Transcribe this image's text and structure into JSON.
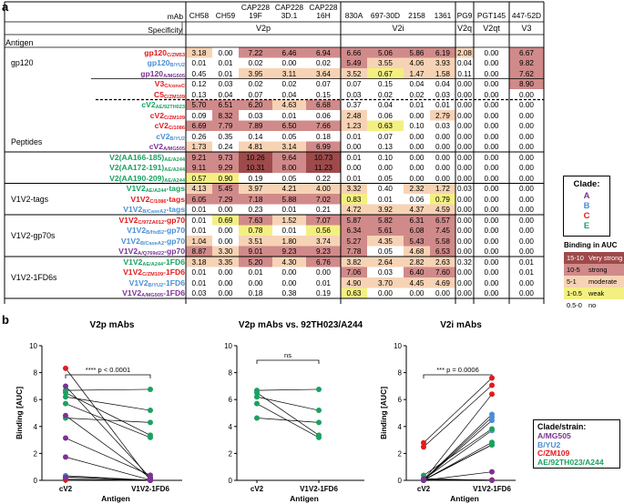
{
  "panel_a_letter": "a",
  "panel_b_letter": "b",
  "table": {
    "mab_header": "mAb",
    "specificity_header": "Specificity",
    "antigen_header": "Antigen",
    "mab_names": [
      [
        "CH58"
      ],
      [
        "CH59"
      ],
      [
        "CAP228",
        "19F"
      ],
      [
        "CAP228",
        "3D.1"
      ],
      [
        "CAP228",
        "16H"
      ],
      [
        "830A"
      ],
      [
        "697-30D"
      ],
      [
        "2158"
      ],
      [
        "1361"
      ],
      [
        "PG9"
      ],
      [
        "PGT145"
      ],
      [
        "447-52D"
      ]
    ],
    "specificities": [
      "V2p",
      "V2i",
      "V2q",
      "V2qt",
      "V3"
    ],
    "groups": [
      "gp120",
      "Peptides",
      "V1V2-tags",
      "V1V2-gp70s",
      "V1V2-1FD6s"
    ],
    "rows": [
      {
        "main": "gp120",
        "sub": "C/ZM53",
        "clade": "C",
        "vals": [
          "3.18",
          "0.00",
          "7.22",
          "6.46",
          "6.94",
          "6.66",
          "5.06",
          "5.86",
          "6.19",
          "2.08",
          "0.00",
          "6.67"
        ]
      },
      {
        "main": "gp120",
        "sub": "B/YU2",
        "clade": "B",
        "vals": [
          "0.01",
          "0.01",
          "0.02",
          "0.00",
          "0.02",
          "5.49",
          "3.55",
          "4.06",
          "3.93",
          "0.04",
          "0.00",
          "9.82"
        ]
      },
      {
        "main": "gp120",
        "sub": "A/MG505",
        "clade": "A",
        "vals": [
          "0.45",
          "0.01",
          "3.95",
          "3.11",
          "3.64",
          "3.52",
          "0.67",
          "1.47",
          "1.58",
          "0.11",
          "0.00",
          "7.62"
        ]
      },
      {
        "main": "V3",
        "sub": "C/consC",
        "clade": "C",
        "vals": [
          "0.12",
          "0.03",
          "0.02",
          "0.02",
          "0.07",
          "0.07",
          "0.15",
          "0.04",
          "0.04",
          "0.00",
          "0.00",
          "8.90"
        ]
      },
      {
        "main": "C5",
        "sub": "C/ZM109",
        "clade": "C",
        "vals": [
          "0.13",
          "0.04",
          "0.07",
          "0.04",
          "0.15",
          "0.03",
          "0.02",
          "0.02",
          "0.03",
          "0.00",
          "0.00",
          "0.00"
        ]
      },
      {
        "main": "cV2",
        "sub": "AE/92TH023",
        "clade": "AE",
        "vals": [
          "5.70",
          "6.51",
          "6.20",
          "4.63",
          "6.68",
          "0.37",
          "0.04",
          "0.01",
          "0.01",
          "0.00",
          "0.00",
          "0.00"
        ]
      },
      {
        "main": "cV2",
        "sub": "C/ZM109",
        "clade": "C",
        "vals": [
          "0.09",
          "8.32",
          "0.03",
          "0.01",
          "0.06",
          "2.48",
          "0.06",
          "0.00",
          "2.79",
          "0.00",
          "0.00",
          "0.00"
        ]
      },
      {
        "main": "cV2",
        "sub": "C/1086",
        "clade": "C",
        "vals": [
          "6.69",
          "7.79",
          "7.89",
          "6.50",
          "7.66",
          "1.23",
          "0.63",
          "0.10",
          "0.03",
          "0.00",
          "0.00",
          "0.00"
        ]
      },
      {
        "main": "cV2",
        "sub": "B/YU2",
        "clade": "B",
        "vals": [
          "0.26",
          "0.35",
          "0.14",
          "0.05",
          "0.18",
          "0.01",
          "0.07",
          "0.00",
          "0.00",
          "0.00",
          "0.00",
          "0.00"
        ]
      },
      {
        "main": "cV2",
        "sub": "A/MG505",
        "clade": "A",
        "vals": [
          "1.73",
          "0.24",
          "4.81",
          "3.14",
          "6.99",
          "0.00",
          "0.13",
          "0.00",
          "0.00",
          "0.00",
          "0.00",
          "0.00"
        ]
      },
      {
        "main": "V2(AA166-185)",
        "sub": "AE/A244",
        "clade": "AE",
        "vals": [
          "9.21",
          "9.73",
          "10.26",
          "9.64",
          "10.73",
          "0.01",
          "0.10",
          "0.00",
          "0.00",
          "0.00",
          "0.00",
          "0.00"
        ]
      },
      {
        "main": "V2(AA172-191)",
        "sub": "AE/A244",
        "clade": "AE",
        "vals": [
          "9.11",
          "9.29",
          "10.31",
          "8.00",
          "11.23",
          "0.00",
          "0.00",
          "0.00",
          "0.00",
          "0.00",
          "0.00",
          "0.00"
        ]
      },
      {
        "main": "V2(AA190-209)",
        "sub": "AE/A244",
        "clade": "AE",
        "vals": [
          "0.57",
          "0.90",
          "0.19",
          "0.05",
          "0.22",
          "0.01",
          "0.05",
          "0.00",
          "0.00",
          "0.00",
          "0.00",
          "0.00"
        ]
      },
      {
        "main": "V1V2",
        "sub": "AE/A244",
        "suffix": "-tags",
        "clade": "AE",
        "vals": [
          "4.13",
          "5.45",
          "3.97",
          "4.21",
          "4.00",
          "3.32",
          "0.40",
          "2.32",
          "1.72",
          "0.03",
          "0.00",
          "0.00"
        ]
      },
      {
        "main": "V1V2",
        "sub": "C/1086",
        "suffix": "-tags",
        "clade": "C",
        "vals": [
          "6.05",
          "7.29",
          "7.18",
          "5.88",
          "7.02",
          "0.83",
          "0.01",
          "0.06",
          "0.79",
          "0.00",
          "0.00",
          "0.00"
        ]
      },
      {
        "main": "V1V2",
        "sub": "B/CaseA2",
        "suffix": "-tags",
        "clade": "B",
        "vals": [
          "0.01",
          "0.00",
          "0.23",
          "0.01",
          "0.21",
          "4.72",
          "3.92",
          "4.37",
          "4.59",
          "0.00",
          "0.00",
          "0.00"
        ]
      },
      {
        "main": "V1V2",
        "sub": "C/97ZA012",
        "suffix": "-gp70",
        "clade": "C",
        "vals": [
          "0.01",
          "0.69",
          "7.63",
          "1.52",
          "7.07",
          "5.87",
          "5.82",
          "6.31",
          "6.57",
          "0.00",
          "0.00",
          "0.00"
        ]
      },
      {
        "main": "V1V2",
        "sub": "B/HxB2",
        "suffix": "-gp70",
        "clade": "B",
        "vals": [
          "0.01",
          "0.00",
          "0.78",
          "0.01",
          "0.56",
          "6.34",
          "5.61",
          "6.08",
          "7.45",
          "0.00",
          "0.00",
          "0.00"
        ]
      },
      {
        "main": "V1V2",
        "sub": "B/CaseA2",
        "suffix": "-gp70",
        "clade": "B",
        "vals": [
          "1.04",
          "0.00",
          "3.51",
          "1.80",
          "3.74",
          "5.27",
          "4.35",
          "5.43",
          "5.58",
          "0.00",
          "0.00",
          "0.00"
        ]
      },
      {
        "main": "V1V2",
        "sub": "A/Q769d22",
        "suffix": "-gp70",
        "clade": "A",
        "vals": [
          "8.87",
          "3.30",
          "9.01",
          "9.23",
          "9.23",
          "7.78",
          "0.05",
          "4.68",
          "6.53",
          "0.00",
          "0.00",
          "0.00"
        ]
      },
      {
        "main": "V1V2",
        "sub": "AE/A244",
        "suffix": "-1FD6",
        "clade": "AE",
        "vals": [
          "3.18",
          "3.35",
          "5.20",
          "4.30",
          "6.76",
          "3.82",
          "2.64",
          "2.82",
          "2.63",
          "0.32",
          "0.00",
          "0.01"
        ]
      },
      {
        "main": "V1V2",
        "sub": "C/ZM109",
        "suffix": "-1FD6",
        "clade": "C",
        "vals": [
          "0.01",
          "0.00",
          "0.01",
          "0.00",
          "0.00",
          "7.06",
          "0.03",
          "6.40",
          "7.60",
          "0.00",
          "0.00",
          "0.01"
        ]
      },
      {
        "main": "V1V2",
        "sub": "B/YU2",
        "suffix": "-1FD6",
        "clade": "B",
        "vals": [
          "0.01",
          "0.00",
          "0.00",
          "0.00",
          "0.01",
          "4.90",
          "3.70",
          "4.45",
          "4.69",
          "0.00",
          "0.00",
          "0.00"
        ]
      },
      {
        "main": "V1V2",
        "sub": "A/MG505",
        "suffix": "-1FD6",
        "clade": "A",
        "vals": [
          "0.03",
          "0.00",
          "0.18",
          "0.38",
          "0.19",
          "0.63",
          "0.00",
          "0.00",
          "0.00",
          "0.00",
          "0.00",
          "0.00"
        ]
      }
    ]
  },
  "clade_legend": {
    "title": "Clade:",
    "items": [
      {
        "label": "A",
        "color": "#7b3294"
      },
      {
        "label": "B",
        "color": "#4a8fd4"
      },
      {
        "label": "C",
        "color": "#e31a1c"
      },
      {
        "label": "E",
        "color": "#1aa260"
      }
    ]
  },
  "binding_legend": {
    "title": "Binding in AUC",
    "items": [
      {
        "range": "15-10",
        "label": "Very strong",
        "color": "#9e4a4a"
      },
      {
        "range": "10-5",
        "label": "strong",
        "color": "#d08a8a"
      },
      {
        "range": "5-1",
        "label": "moderate",
        "color": "#f7d3b5"
      },
      {
        "range": "1-0.5",
        "label": "weak",
        "color": "#f3f081"
      },
      {
        "range": "0.5-0",
        "label": "no",
        "color": "#ffffff"
      }
    ]
  },
  "colors": {
    "A": "#7b3294",
    "B": "#4a8fd4",
    "C": "#e31a1c",
    "AE": "#1aa260"
  },
  "chart_data": [
    {
      "type": "scatter",
      "title": "V2p mAbs",
      "ylabel": "Binding [AUC]",
      "xlabel": "Antigen",
      "categories": [
        "cV2",
        "V1V2-1FD6"
      ],
      "ylim": [
        0,
        10
      ],
      "yticks": [
        0,
        2,
        4,
        6,
        8,
        10
      ],
      "annotation": "**** p < 0.0001",
      "pairs": [
        {
          "clade": "AE",
          "values": [
            5.7,
            3.18
          ]
        },
        {
          "clade": "AE",
          "values": [
            6.51,
            3.35
          ]
        },
        {
          "clade": "AE",
          "values": [
            6.2,
            5.2
          ]
        },
        {
          "clade": "AE",
          "values": [
            4.63,
            4.3
          ]
        },
        {
          "clade": "AE",
          "values": [
            6.68,
            6.76
          ]
        },
        {
          "clade": "C",
          "values": [
            8.32,
            0.0
          ]
        },
        {
          "clade": "C",
          "values": [
            0.09,
            0.01
          ]
        },
        {
          "clade": "C",
          "values": [
            0.03,
            0.01
          ]
        },
        {
          "clade": "B",
          "values": [
            0.26,
            0.01
          ]
        },
        {
          "clade": "B",
          "values": [
            0.35,
            0.0
          ]
        },
        {
          "clade": "A",
          "values": [
            1.73,
            0.03
          ]
        },
        {
          "clade": "A",
          "values": [
            4.81,
            0.18
          ]
        },
        {
          "clade": "A",
          "values": [
            3.14,
            0.38
          ]
        },
        {
          "clade": "A",
          "values": [
            6.99,
            0.19
          ]
        },
        {
          "clade": "A",
          "values": [
            0.24,
            0.0
          ]
        }
      ]
    },
    {
      "type": "scatter",
      "title": "V2p mAbs vs. 92TH023/A244",
      "xlabel": "Antigen",
      "categories": [
        "cV2",
        "V1V2-1FD6"
      ],
      "ylim": [
        0,
        10
      ],
      "yticks": [
        0,
        2,
        4,
        6,
        8,
        10
      ],
      "annotation": "ns",
      "pairs": [
        {
          "clade": "AE",
          "values": [
            5.7,
            3.18
          ]
        },
        {
          "clade": "AE",
          "values": [
            6.51,
            3.35
          ]
        },
        {
          "clade": "AE",
          "values": [
            6.2,
            5.2
          ]
        },
        {
          "clade": "AE",
          "values": [
            4.63,
            4.3
          ]
        },
        {
          "clade": "AE",
          "values": [
            6.68,
            6.76
          ]
        }
      ]
    },
    {
      "type": "scatter",
      "title": "V2i mAbs",
      "ylabel": "Binding [AUC]",
      "xlabel": "Antigen",
      "categories": [
        "cV2",
        "V1V2-1FD6"
      ],
      "ylim": [
        0,
        10
      ],
      "yticks": [
        0,
        2,
        4,
        6,
        8,
        10
      ],
      "annotation": "*** p = 0.0006",
      "pairs": [
        {
          "clade": "C",
          "values": [
            2.48,
            7.06
          ]
        },
        {
          "clade": "C",
          "values": [
            2.79,
            7.6
          ]
        },
        {
          "clade": "C",
          "values": [
            0.06,
            0.03
          ]
        },
        {
          "clade": "C",
          "values": [
            0.0,
            6.4
          ]
        },
        {
          "clade": "B",
          "values": [
            0.01,
            4.9
          ]
        },
        {
          "clade": "B",
          "values": [
            0.07,
            3.7
          ]
        },
        {
          "clade": "B",
          "values": [
            0.0,
            4.45
          ]
        },
        {
          "clade": "B",
          "values": [
            0.0,
            4.69
          ]
        },
        {
          "clade": "AE",
          "values": [
            0.37,
            3.82
          ]
        },
        {
          "clade": "AE",
          "values": [
            0.04,
            2.64
          ]
        },
        {
          "clade": "AE",
          "values": [
            0.01,
            2.82
          ]
        },
        {
          "clade": "AE",
          "values": [
            0.01,
            2.63
          ]
        },
        {
          "clade": "A",
          "values": [
            0.0,
            0.63
          ]
        },
        {
          "clade": "A",
          "values": [
            0.13,
            0.0
          ]
        }
      ]
    }
  ],
  "strain_legend": {
    "title": "Clade/strain:",
    "items": [
      {
        "label": "A/MG505",
        "color": "#7b3294"
      },
      {
        "label": "B/YU2",
        "color": "#4a8fd4"
      },
      {
        "label": "C/ZM109",
        "color": "#e31a1c"
      },
      {
        "label": "AE/92TH023/A244",
        "color": "#1aa260"
      }
    ]
  }
}
